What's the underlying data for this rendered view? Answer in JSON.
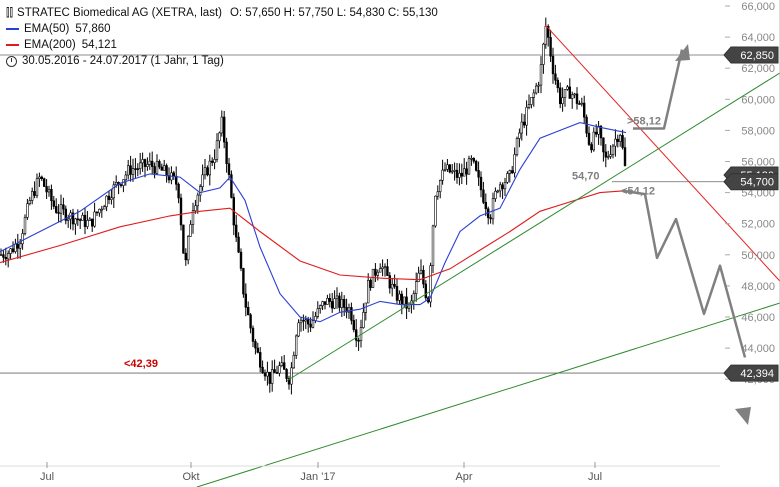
{
  "header": {
    "title": "STRATEC Biomedical AG (XETRA, last)",
    "ohlc": "O: 57,650  H: 57,750  L: 54,830  C: 55,130",
    "ema50_label": "EMA(50)",
    "ema50_value": "57,860",
    "ema200_label": "EMA(200)",
    "ema200_value": "54,121",
    "period": "30.05.2016 - 24.07.2017  (1 Jahr, 1 Tag)"
  },
  "colors": {
    "price": "#000000",
    "ema50": "#2a3fd6",
    "ema200": "#e01b1b",
    "trend_down": "#e52222",
    "trend_up": "#2f8a2f",
    "scenario_arrow": "#808080",
    "level_line": "#666666",
    "axis_text": "#888888"
  },
  "annotations": {
    "low_label": "<42,39",
    "resist_label": ">58,12",
    "support_label": "<54,12",
    "current_label": "54,70"
  },
  "chart_data": {
    "type": "candlestick",
    "x_ticks": [
      "Jul",
      "Okt",
      "Jan '17",
      "Apr",
      "Jul"
    ],
    "y_ticks": [
      66,
      64,
      62,
      60,
      58,
      56,
      54,
      52,
      50,
      48,
      46,
      44,
      42
    ],
    "y_tick_labels": [
      "66,000",
      "64,000",
      "62,000",
      "60,000",
      "58,000",
      "56,000",
      "54,000",
      "52,000",
      "50,000",
      "48,000",
      "46,000",
      "44,000",
      "42,000"
    ],
    "ylim": [
      41.3,
      66.5
    ],
    "price_tags": [
      {
        "label": "62,850",
        "value": 62.85
      },
      {
        "label": "55,130",
        "value": 55.13
      },
      {
        "label": "54,700",
        "value": 54.7
      },
      {
        "label": "42,394",
        "value": 42.394
      }
    ],
    "horizontal_levels": [
      62.85,
      54.7,
      42.394
    ],
    "close_approx": [
      {
        "month": "2016-06",
        "value": 50.5
      },
      {
        "month": "2016-07",
        "value": 52.0
      },
      {
        "month": "2016-08",
        "value": 55.5
      },
      {
        "month": "2016-09",
        "value": 55.0
      },
      {
        "month": "2016-10",
        "value": 55.0
      },
      {
        "month": "2016-11",
        "value": 45.0
      },
      {
        "month": "2016-12",
        "value": 43.5
      },
      {
        "month": "2017-01",
        "value": 46.0
      },
      {
        "month": "2017-02",
        "value": 48.0
      },
      {
        "month": "2017-03",
        "value": 47.0
      },
      {
        "month": "2017-04",
        "value": 56.0
      },
      {
        "month": "2017-05",
        "value": 62.0
      },
      {
        "month": "2017-06",
        "value": 58.0
      },
      {
        "month": "2017-07",
        "value": 55.13
      }
    ],
    "series": [
      {
        "name": "EMA(50)",
        "last": 57.86
      },
      {
        "name": "EMA(200)",
        "last": 54.121
      }
    ]
  }
}
